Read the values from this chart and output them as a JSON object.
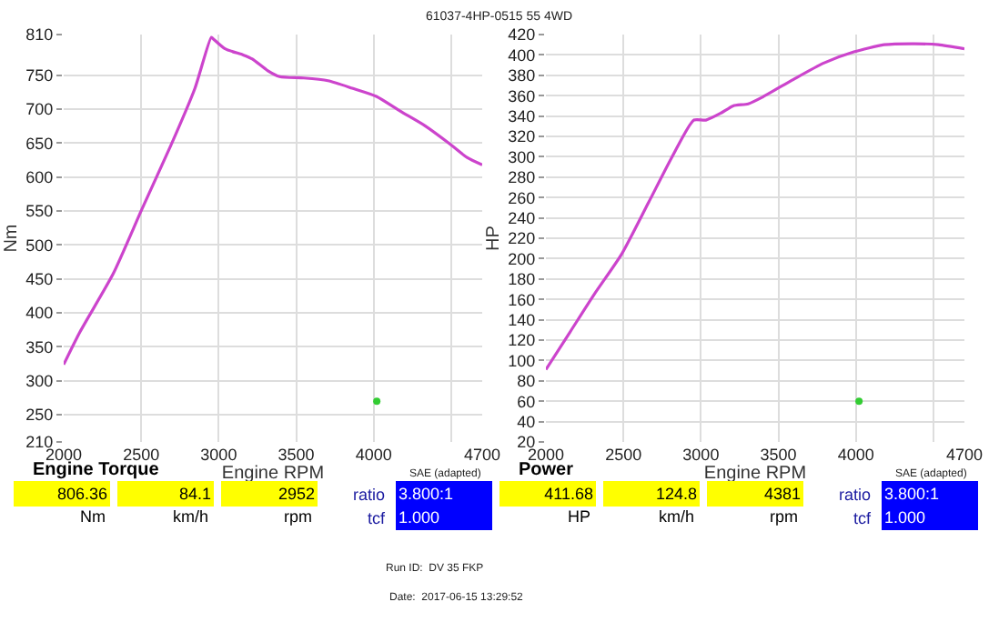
{
  "chart_data": [
    {
      "type": "line",
      "title": "61037-4HP-0515 55 4WD",
      "xlabel": "Engine RPM",
      "ylabel": "Nm",
      "xlim": [
        2000,
        4700
      ],
      "xticks": [
        2000,
        2500,
        3000,
        3500,
        4000,
        {
          "value": 4500,
          "label": null
        },
        4700
      ],
      "ylim": [
        210,
        810
      ],
      "yticks": [
        210,
        250,
        300,
        350,
        400,
        450,
        500,
        550,
        600,
        650,
        700,
        750,
        810
      ],
      "grid": true,
      "marker": "none",
      "line_style": "solid",
      "series": [
        {
          "color": "#cc44cc",
          "x": [
            2000,
            2105,
            2320,
            2503,
            2690,
            2847,
            2952,
            2963,
            3041,
            3158,
            3217,
            3315,
            3393,
            3549,
            3705,
            3861,
            4017,
            4173,
            4329,
            4485,
            4602,
            4700
          ],
          "values": [
            324,
            372,
            458,
            552,
            646,
            731,
            806,
            804,
            789,
            780,
            774,
            757,
            748,
            746,
            742,
            731,
            719,
            697,
            676,
            650,
            629,
            618
          ]
        },
        {
          "type": "scatter",
          "marker": "circle",
          "color": "#33cc33",
          "x": [
            4020
          ],
          "values": [
            270
          ]
        }
      ],
      "annotations": [
        "Engine Torque",
        "SAE (adapted)",
        "806.36",
        "84.1",
        "2952",
        "Nm",
        "km/h",
        "rpm",
        "ratio",
        "3.800:1",
        "tcf",
        "1.000",
        "Run ID:  DV 35 FKP",
        "Date:  2017-06-15 13:29:52"
      ]
    },
    {
      "type": "line",
      "xlabel": "Engine RPM",
      "ylabel": "HP",
      "xlim": [
        2000,
        4700
      ],
      "xticks": [
        2000,
        2500,
        3000,
        3500,
        4000,
        {
          "value": 4500,
          "label": null
        },
        4700
      ],
      "ylim": [
        20,
        420
      ],
      "yticks": [
        20,
        40,
        60,
        80,
        100,
        120,
        140,
        160,
        180,
        200,
        220,
        240,
        260,
        280,
        300,
        320,
        340,
        360,
        380,
        400,
        420
      ],
      "grid": true,
      "marker": "none",
      "line_style": "solid",
      "series": [
        {
          "color": "#cc44cc",
          "x": [
            2000,
            2156,
            2312,
            2487,
            2662,
            2818,
            2954,
            3032,
            3130,
            3208,
            3305,
            3402,
            3597,
            3792,
            3987,
            4182,
            4377,
            4532,
            4700
          ],
          "values": [
            91,
            128,
            165,
            204,
            255,
            301,
            336,
            336,
            343,
            350,
            352,
            359,
            376,
            392,
            403,
            410,
            411,
            410,
            406
          ]
        },
        {
          "type": "scatter",
          "marker": "circle",
          "color": "#33cc33",
          "x": [
            4020
          ],
          "values": [
            60
          ]
        }
      ],
      "annotations": [
        "Power",
        "SAE (adapted)",
        "411.68",
        "124.8",
        "4381",
        "HP",
        "km/h",
        "rpm",
        "ratio",
        "3.800:1",
        "tcf",
        "1.000"
      ]
    }
  ]
}
